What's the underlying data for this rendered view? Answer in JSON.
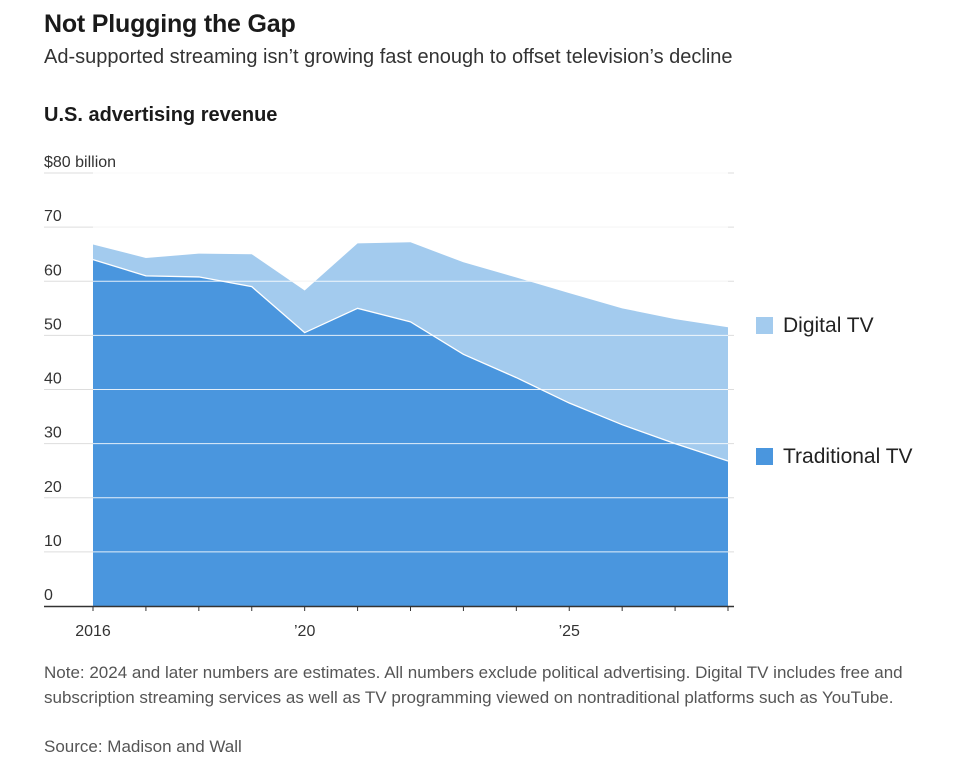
{
  "header": {
    "title": "Not Plugging the Gap",
    "subtitle": "Ad-supported streaming isn’t growing fast enough to offset television’s decline",
    "chart_heading": "U.S. advertising revenue"
  },
  "footer": {
    "note": "Note: 2024 and later numbers are estimates. All numbers exclude political advertising. Digital TV includes free and subscription streaming services as well as TV programming viewed on nontraditional platforms such as YouTube.",
    "source": "Source: Madison and Wall"
  },
  "colors": {
    "traditional_tv": "#4a96de",
    "digital_tv": "#a3cbee",
    "gridline": "#ffffff",
    "axis": "#333333"
  },
  "chart_data": {
    "type": "area",
    "stacked": true,
    "x": [
      2016,
      2017,
      2018,
      2019,
      2020,
      2021,
      2022,
      2023,
      2024,
      2025,
      2026,
      2027,
      2028
    ],
    "series": [
      {
        "name": "Traditional TV",
        "values": [
          64,
          61,
          60.8,
          59,
          50.5,
          55,
          52.5,
          46.5,
          42.2,
          37.5,
          33.5,
          30,
          26.8
        ]
      },
      {
        "name": "Digital TV",
        "values": [
          2.8,
          3.3,
          4.3,
          6,
          7.8,
          12,
          14.7,
          17,
          18.5,
          20.3,
          21.5,
          23,
          24.7
        ]
      }
    ],
    "ylim": [
      0,
      80
    ],
    "y_ticks": [
      {
        "value": 0,
        "label": "0"
      },
      {
        "value": 10,
        "label": "10"
      },
      {
        "value": 20,
        "label": "20"
      },
      {
        "value": 30,
        "label": "30"
      },
      {
        "value": 40,
        "label": "40"
      },
      {
        "value": 50,
        "label": "50"
      },
      {
        "value": 60,
        "label": "60"
      },
      {
        "value": 70,
        "label": "70"
      },
      {
        "value": 80,
        "label": "$80 billion"
      }
    ],
    "x_tick_labels": [
      {
        "value": 2016,
        "label": "2016"
      },
      {
        "value": 2020,
        "label": "’20"
      },
      {
        "value": 2025,
        "label": "’25"
      }
    ],
    "grid": true,
    "legend_position": "right",
    "legend": [
      {
        "name": "Digital TV",
        "color": "#a3cbee"
      },
      {
        "name": "Traditional TV",
        "color": "#4a96de"
      }
    ]
  }
}
